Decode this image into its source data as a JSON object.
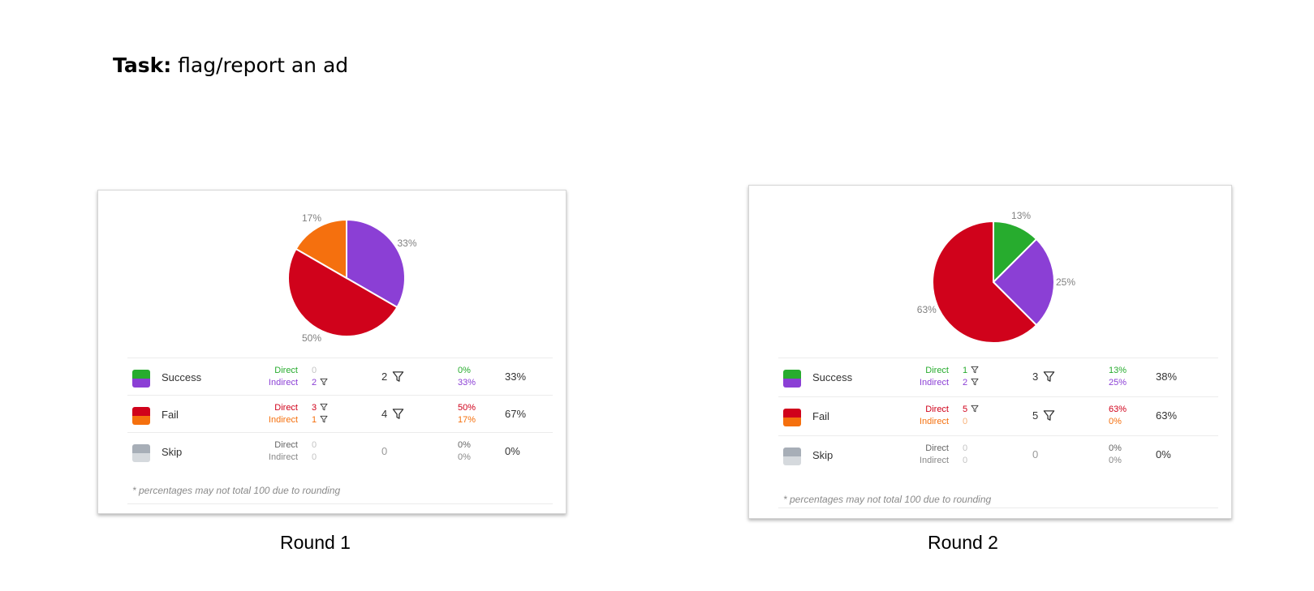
{
  "task": {
    "prefix": "Task:",
    "text": " flag/report an ad"
  },
  "colors": {
    "success_direct": "#27ac2e",
    "success_indirect": "#8b3fd5",
    "fail_direct": "#d0021b",
    "fail_indirect": "#f5700e",
    "skip_direct": "#a7aeb7",
    "skip_indirect": "#d5d9dd",
    "zero": "#c4c4c4"
  },
  "icons": {
    "filter": "filter-funnel-icon"
  },
  "footnote": "* percentages may not total 100 due to rounding",
  "rounds": [
    {
      "caption": "Round 1",
      "rows": [
        {
          "label": "Success",
          "direct_label": "Direct",
          "indirect_label": "Indirect",
          "direct_count": "0",
          "indirect_count": "2",
          "total": "2",
          "direct_pct": "0%",
          "indirect_pct": "33%",
          "overall": "33%"
        },
        {
          "label": "Fail",
          "direct_label": "Direct",
          "indirect_label": "Indirect",
          "direct_count": "3",
          "indirect_count": "1",
          "total": "4",
          "direct_pct": "50%",
          "indirect_pct": "17%",
          "overall": "67%"
        },
        {
          "label": "Skip",
          "direct_label": "Direct",
          "indirect_label": "Indirect",
          "direct_count": "0",
          "indirect_count": "0",
          "total": "0",
          "direct_pct": "0%",
          "indirect_pct": "0%",
          "overall": "0%"
        }
      ]
    },
    {
      "caption": "Round 2",
      "rows": [
        {
          "label": "Success",
          "direct_label": "Direct",
          "indirect_label": "Indirect",
          "direct_count": "1",
          "indirect_count": "2",
          "total": "3",
          "direct_pct": "13%",
          "indirect_pct": "25%",
          "overall": "38%"
        },
        {
          "label": "Fail",
          "direct_label": "Direct",
          "indirect_label": "Indirect",
          "direct_count": "5",
          "indirect_count": "0",
          "total": "5",
          "direct_pct": "63%",
          "indirect_pct": "0%",
          "overall": "63%"
        },
        {
          "label": "Skip",
          "direct_label": "Direct",
          "indirect_label": "Indirect",
          "direct_count": "0",
          "indirect_count": "0",
          "total": "0",
          "direct_pct": "0%",
          "indirect_pct": "0%",
          "overall": "0%"
        }
      ]
    }
  ],
  "chart_data": [
    {
      "type": "pie",
      "title": "",
      "slices": [
        {
          "category": "Success – Indirect",
          "value": 2,
          "label": "33%",
          "color": "#8b3fd5"
        },
        {
          "category": "Fail – Direct",
          "value": 3,
          "label": "50%",
          "color": "#d0021b"
        },
        {
          "category": "Fail – Indirect",
          "value": 1,
          "label": "17%",
          "color": "#f5700e"
        }
      ]
    },
    {
      "type": "pie",
      "title": "",
      "slices": [
        {
          "category": "Success – Direct",
          "value": 1,
          "label": "13%",
          "color": "#27ac2e"
        },
        {
          "category": "Success – Indirect",
          "value": 2,
          "label": "25%",
          "color": "#8b3fd5"
        },
        {
          "category": "Fail – Direct",
          "value": 5,
          "label": "63%",
          "color": "#d0021b"
        }
      ]
    }
  ]
}
